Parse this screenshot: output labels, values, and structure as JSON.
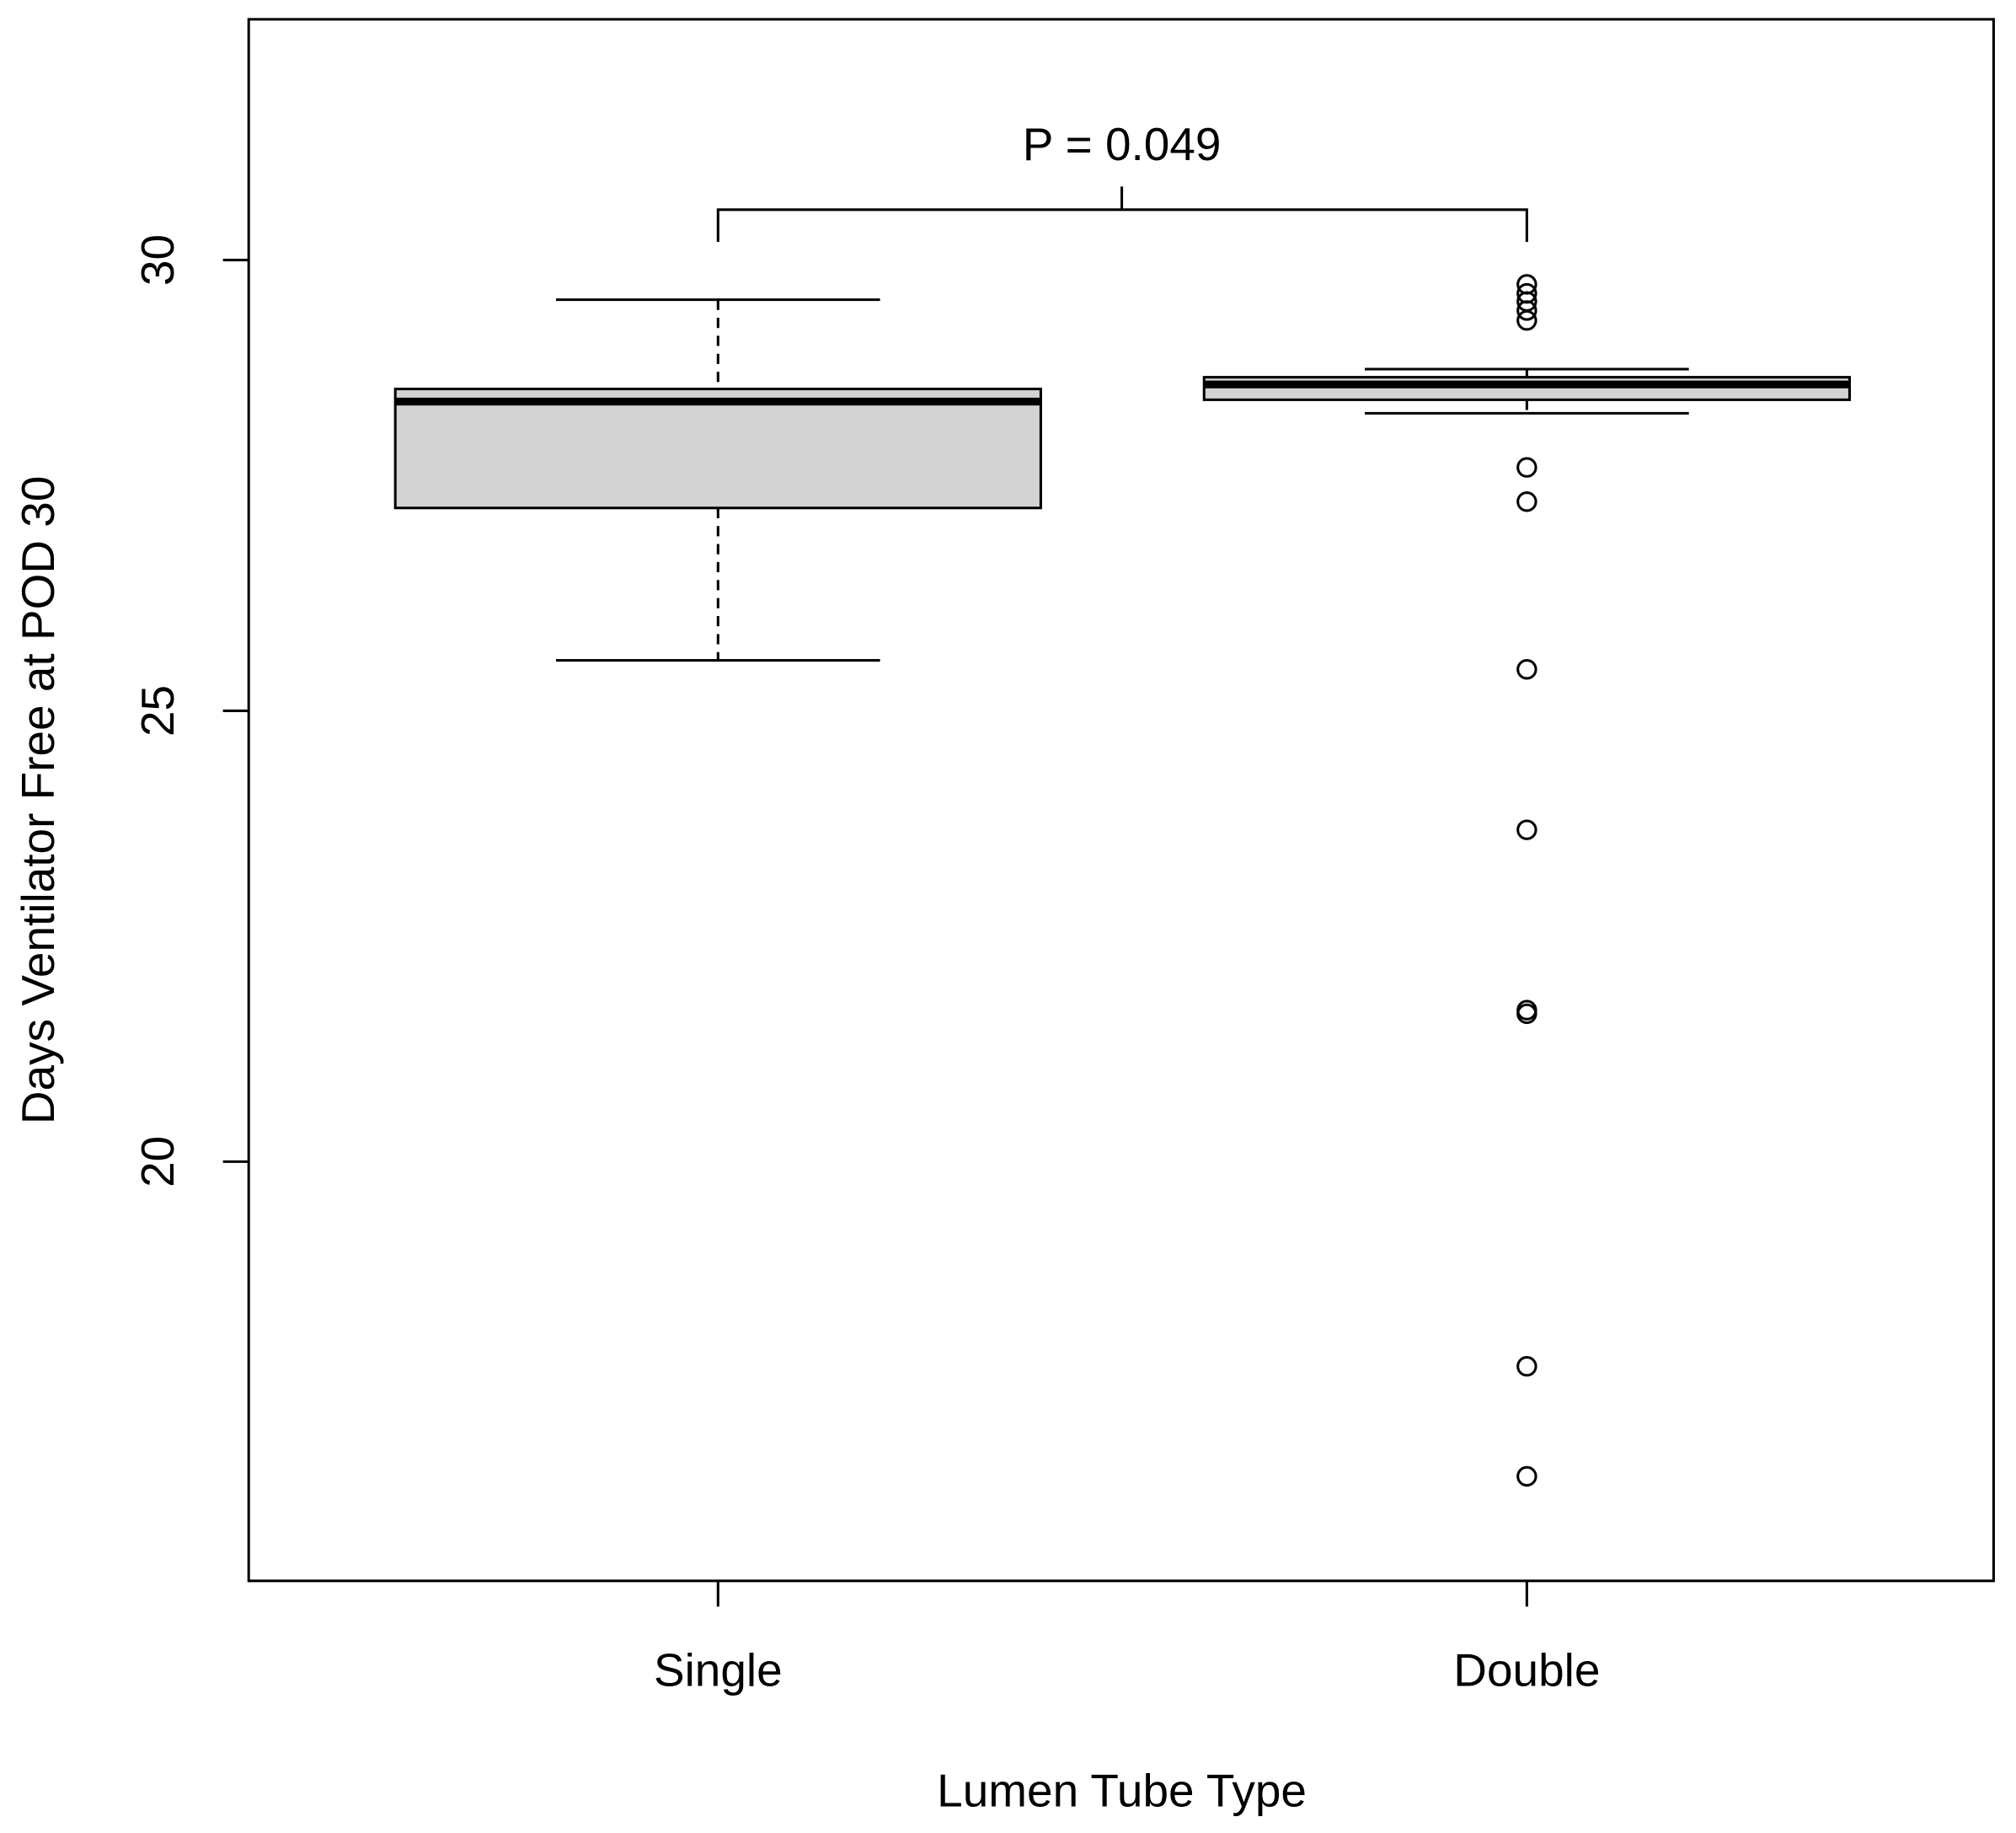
{
  "chart_data": {
    "type": "box",
    "x_label": "Lumen Tube Type",
    "y_label": "Days Ventilator Free at POD 30",
    "annotation": "P = 0.049",
    "categories": [
      "Single",
      "Double"
    ],
    "boxes": [
      {
        "whisker_low": 25.56,
        "q1": 27.25,
        "median": 28.43,
        "q3": 28.57,
        "whisker_high": 29.56,
        "outliers": []
      },
      {
        "whisker_low": 28.3,
        "q1": 28.45,
        "median": 28.62,
        "q3": 28.7,
        "whisker_high": 28.79,
        "outliers": [
          29.73,
          29.63,
          29.54,
          29.44,
          29.33,
          27.7,
          27.32,
          25.46,
          23.68,
          21.68,
          21.64,
          17.73,
          16.51
        ]
      }
    ],
    "color": "#d3d3d3",
    "ylim": [
      15.35,
      32.67
    ],
    "yticks": [
      20,
      25,
      30
    ]
  }
}
